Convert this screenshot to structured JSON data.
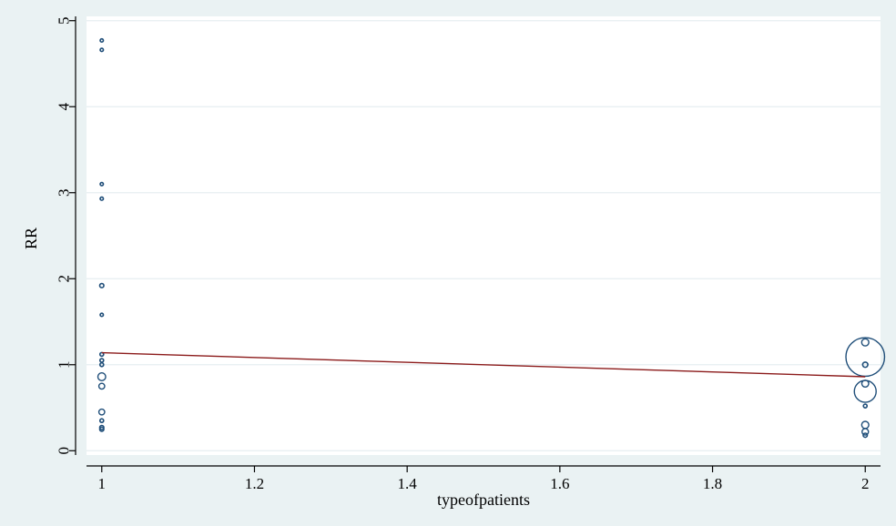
{
  "chart_data": {
    "type": "scatter",
    "xlabel": "typeofpatients",
    "ylabel": "RR",
    "xlim": [
      0.98,
      2.02
    ],
    "ylim": [
      -0.05,
      5.05
    ],
    "x_ticks": [
      1,
      1.2,
      1.4,
      1.6,
      1.8,
      2
    ],
    "x_tick_labels": [
      "1",
      "1.2",
      "1.4",
      "1.6",
      "1.8",
      "2"
    ],
    "y_ticks": [
      0,
      1,
      2,
      3,
      4,
      5
    ],
    "y_tick_labels": [
      "0",
      "1",
      "2",
      "3",
      "4",
      "5"
    ],
    "grid": "horizontal",
    "colors": {
      "background": "#eaf2f3",
      "plot_area": "#ffffff",
      "marker": "#1f4e79",
      "fit_line": "#8b1a1a",
      "grid": "#e6eef0"
    },
    "series": [
      {
        "kind": "weighted_points",
        "points": [
          {
            "x": 1,
            "y": 4.77,
            "w": 0.3
          },
          {
            "x": 1,
            "y": 4.66,
            "w": 0.3
          },
          {
            "x": 1,
            "y": 3.1,
            "w": 0.3
          },
          {
            "x": 1,
            "y": 2.93,
            "w": 0.3
          },
          {
            "x": 1,
            "y": 1.92,
            "w": 0.5
          },
          {
            "x": 1,
            "y": 1.58,
            "w": 0.3
          },
          {
            "x": 1,
            "y": 1.12,
            "w": 0.4
          },
          {
            "x": 1,
            "y": 1.05,
            "w": 0.4
          },
          {
            "x": 1,
            "y": 1.0,
            "w": 0.4
          },
          {
            "x": 1,
            "y": 0.86,
            "w": 1.8
          },
          {
            "x": 1,
            "y": 0.75,
            "w": 1.0
          },
          {
            "x": 1,
            "y": 0.45,
            "w": 1.0
          },
          {
            "x": 1,
            "y": 0.35,
            "w": 0.4
          },
          {
            "x": 1,
            "y": 0.27,
            "w": 0.5
          },
          {
            "x": 1,
            "y": 0.25,
            "w": 0.5
          },
          {
            "x": 2,
            "y": 1.26,
            "w": 1.5
          },
          {
            "x": 2,
            "y": 1.09,
            "w": 44
          },
          {
            "x": 2,
            "y": 1.0,
            "w": 0.8
          },
          {
            "x": 2,
            "y": 0.78,
            "w": 1.4
          },
          {
            "x": 2,
            "y": 0.69,
            "w": 14
          },
          {
            "x": 2,
            "y": 0.52,
            "w": 0.4
          },
          {
            "x": 2,
            "y": 0.3,
            "w": 1.5
          },
          {
            "x": 2,
            "y": 0.22,
            "w": 1.2
          },
          {
            "x": 2,
            "y": 0.18,
            "w": 0.5
          }
        ]
      },
      {
        "kind": "fit_line",
        "points": [
          {
            "x": 1,
            "y": 1.14
          },
          {
            "x": 2,
            "y": 0.86
          }
        ]
      }
    ]
  }
}
